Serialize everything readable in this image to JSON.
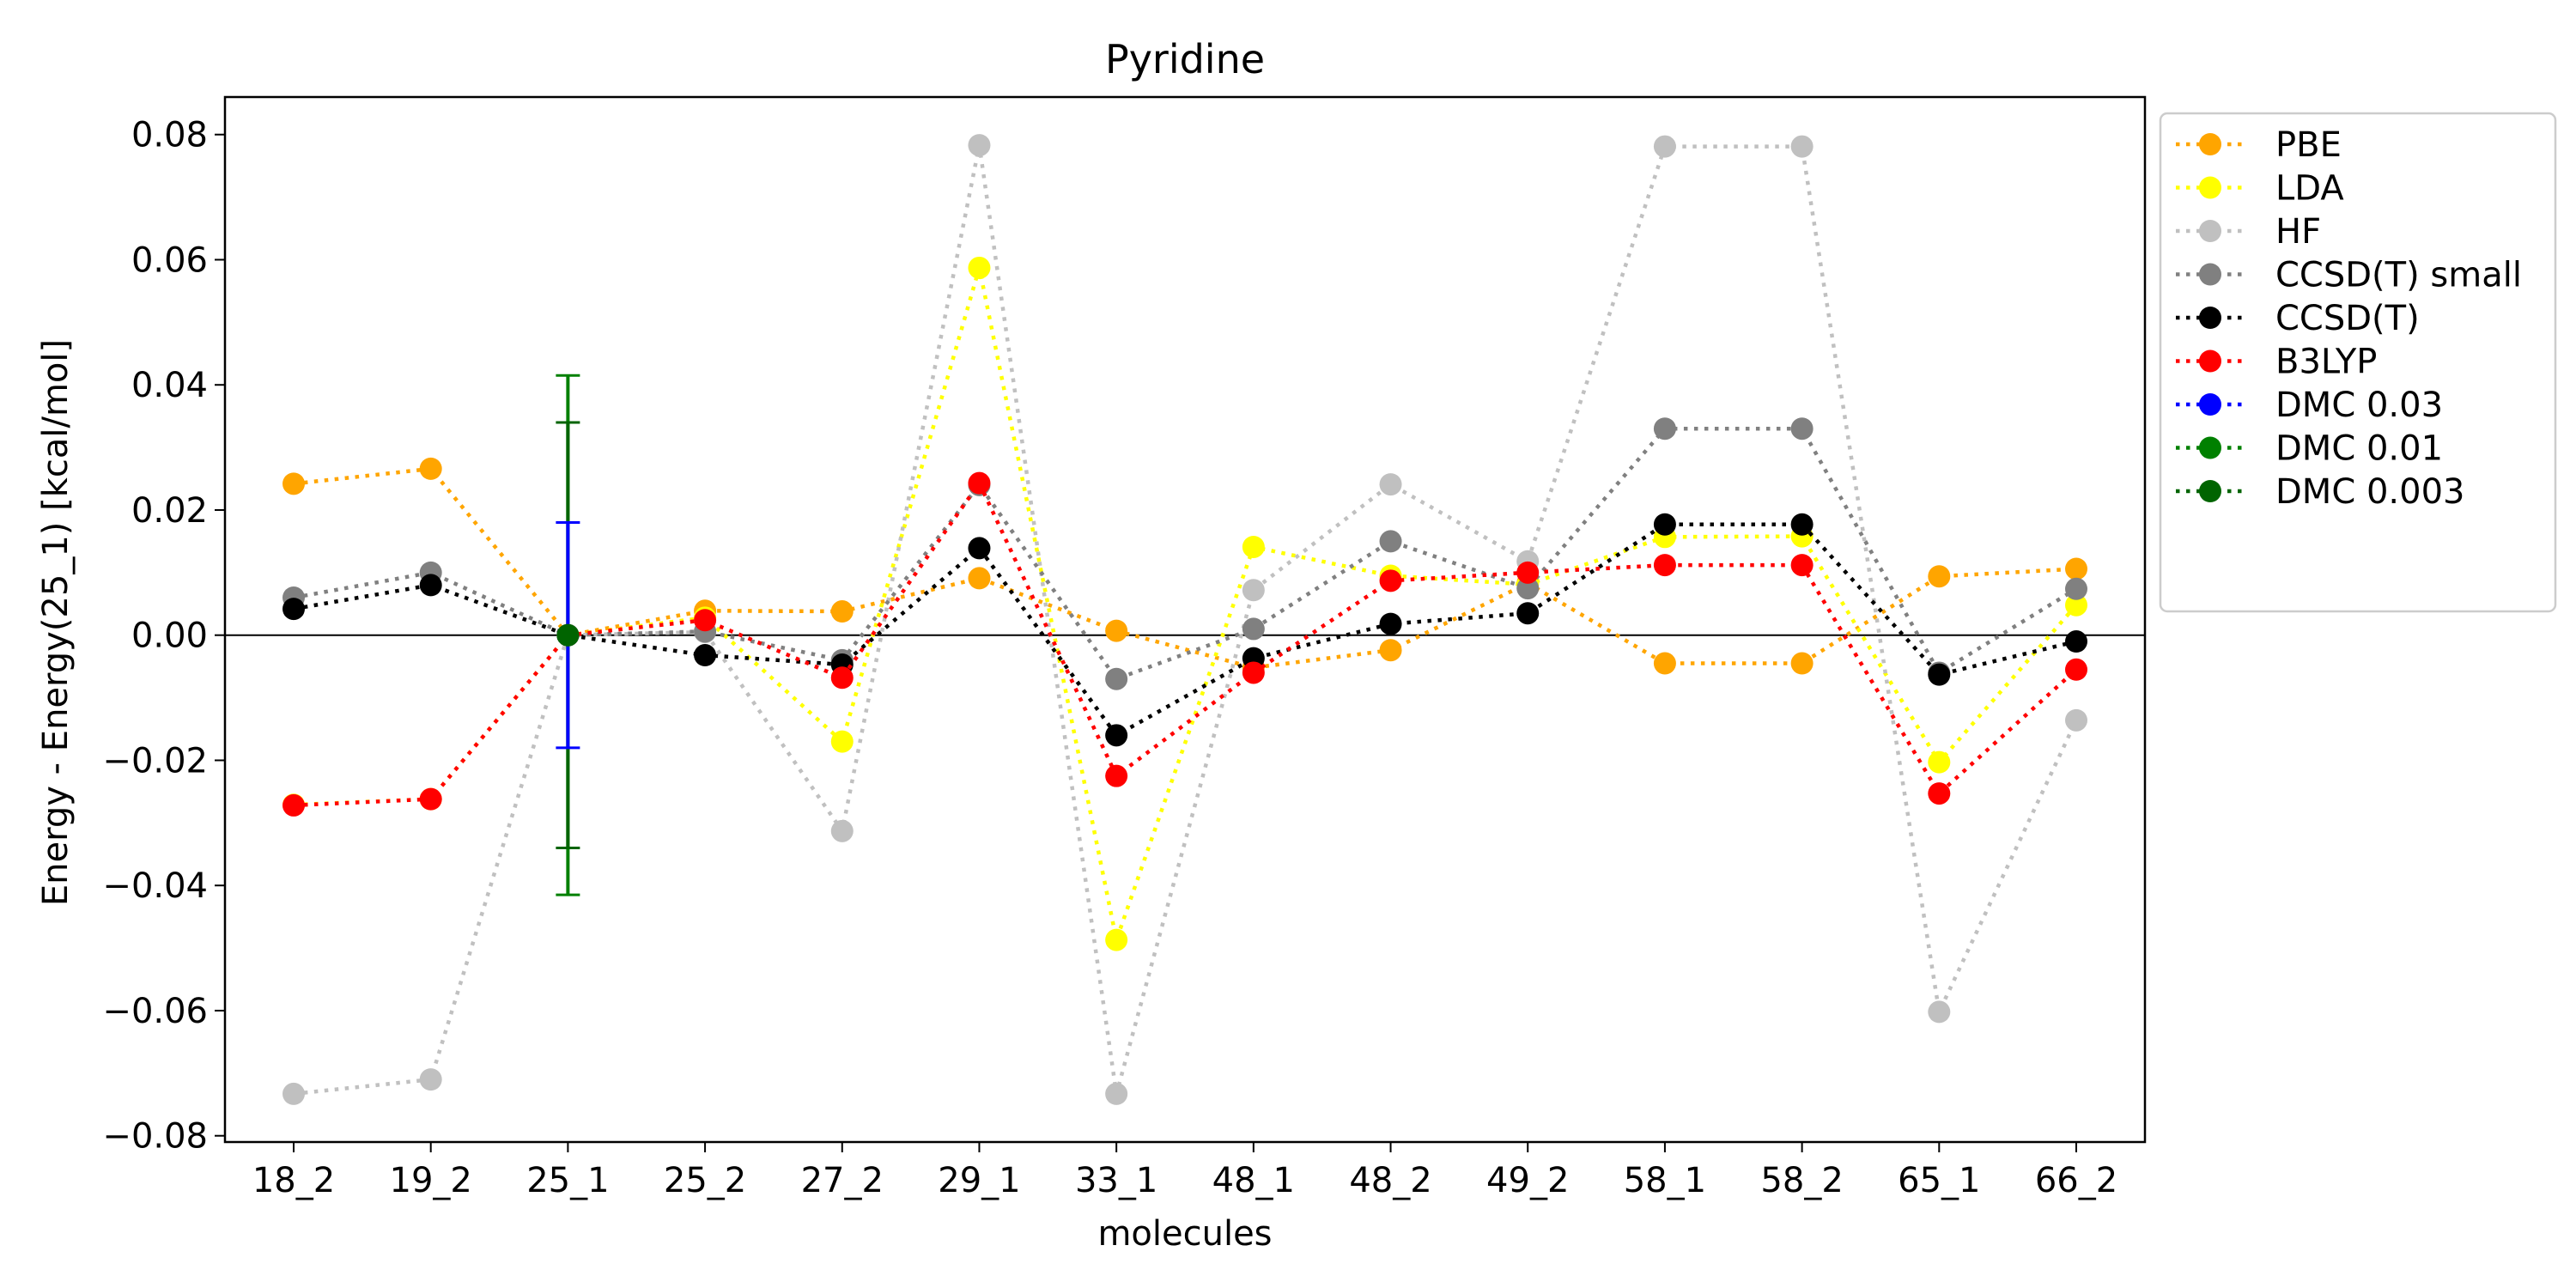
{
  "chart_data": {
    "type": "line",
    "title": "Pyridine",
    "xlabel": "molecules",
    "ylabel": "Energy - Energy(25_1) [kcal/mol]",
    "categories": [
      "18_2",
      "19_2",
      "25_1",
      "25_2",
      "27_2",
      "29_1",
      "33_1",
      "48_1",
      "48_2",
      "49_2",
      "58_1",
      "58_2",
      "65_1",
      "66_2"
    ],
    "ylim": [
      -0.081,
      0.086
    ],
    "yticks": [
      -0.08,
      -0.06,
      -0.04,
      -0.02,
      0.0,
      0.02,
      0.04,
      0.06,
      0.08
    ],
    "ytick_labels": [
      "−0.08",
      "−0.06",
      "−0.04",
      "−0.02",
      "0.00",
      "0.02",
      "0.04",
      "0.06",
      "0.08"
    ],
    "reference_line_y": 0.0,
    "grid": false,
    "legend_position": "outside-right-top",
    "series": [
      {
        "name": "PBE",
        "color": "#ffa500",
        "values": [
          0.0242,
          0.0266,
          0.0,
          0.0039,
          0.0038,
          0.0091,
          0.0007,
          -0.0052,
          -0.0024,
          0.0083,
          -0.0045,
          -0.0045,
          0.0094,
          0.0106
        ]
      },
      {
        "name": "LDA",
        "color": "#ffff00",
        "values": [
          -0.0271,
          -0.0262,
          0.0,
          0.0028,
          -0.017,
          0.0587,
          -0.0487,
          0.0141,
          0.0095,
          0.0081,
          0.0157,
          0.0158,
          -0.0203,
          0.0048
        ]
      },
      {
        "name": "HF",
        "color": "#c0c0c0",
        "values": [
          -0.0733,
          -0.071,
          0.0,
          0.0005,
          -0.0313,
          0.0783,
          -0.0733,
          0.0072,
          0.0241,
          0.0118,
          0.0781,
          0.0781,
          -0.0602,
          -0.0136
        ]
      },
      {
        "name": "CCSD(T) small",
        "color": "#808080",
        "values": [
          0.006,
          0.01,
          0.0,
          0.0006,
          -0.004,
          0.024,
          -0.007,
          0.001,
          0.015,
          0.0075,
          0.033,
          0.033,
          -0.006,
          0.0074
        ]
      },
      {
        "name": "CCSD(T)",
        "color": "#000000",
        "values": [
          0.0042,
          0.008,
          0.0,
          -0.0032,
          -0.0047,
          0.0139,
          -0.016,
          -0.0037,
          0.0018,
          0.0035,
          0.0177,
          0.0177,
          -0.0063,
          -0.001
        ]
      },
      {
        "name": "B3LYP",
        "color": "#ff0000",
        "values": [
          -0.0272,
          -0.0262,
          0.0,
          0.0024,
          -0.0068,
          0.0243,
          -0.0225,
          -0.006,
          0.0087,
          0.01,
          0.0112,
          0.0112,
          -0.0253,
          -0.0055
        ]
      },
      {
        "name": "DMC 0.03",
        "color": "#0000ff",
        "x": "25_1",
        "value": 0.0,
        "error": 0.018
      },
      {
        "name": "DMC 0.01",
        "color": "#008000",
        "x": "25_1",
        "value": 0.0,
        "error": 0.0415
      },
      {
        "name": "DMC 0.003",
        "color": "#006400",
        "x": "25_1",
        "value": 0.0,
        "error": 0.034
      }
    ]
  }
}
